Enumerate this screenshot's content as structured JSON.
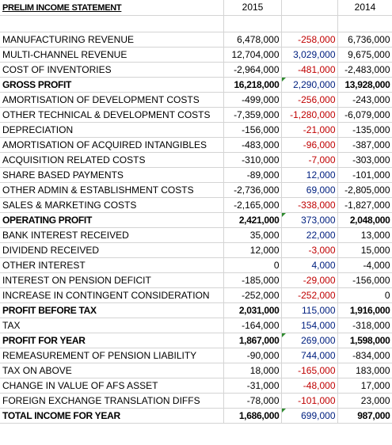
{
  "header": {
    "title": "PRELIM INCOME STATEMENT",
    "year_current": "2015",
    "year_variance": "",
    "year_prior": "2014"
  },
  "rows": [
    {
      "label": "MANUFACTURING REVENUE",
      "cur": "6,478,000",
      "var": "-258,000",
      "prior": "6,736,000"
    },
    {
      "label": "MULTI-CHANNEL REVENUE",
      "cur": "12,704,000",
      "var": "3,029,000",
      "prior": "9,675,000"
    },
    {
      "label": "COST OF INVENTORIES",
      "cur": "-2,964,000",
      "var": "-481,000",
      "prior": "-2,483,000"
    },
    {
      "label": "GROSS PROFIT",
      "cur": "16,218,000",
      "var": "2,290,000",
      "prior": "13,928,000"
    },
    {
      "label": "AMORTISATION OF DEVELOPMENT COSTS",
      "cur": "-499,000",
      "var": "-256,000",
      "prior": "-243,000"
    },
    {
      "label": "OTHER TECHNICAL & DEVELOPMENT COSTS",
      "cur": "-7,359,000",
      "var": "-1,280,000",
      "prior": "-6,079,000"
    },
    {
      "label": "DEPRECIATION",
      "cur": "-156,000",
      "var": "-21,000",
      "prior": "-135,000"
    },
    {
      "label": "AMORTISATION OF ACQUIRED INTANGIBLES",
      "cur": "-483,000",
      "var": "-96,000",
      "prior": "-387,000"
    },
    {
      "label": "ACQUISITION RELATED COSTS",
      "cur": "-310,000",
      "var": "-7,000",
      "prior": "-303,000"
    },
    {
      "label": "SHARE BASED PAYMENTS",
      "cur": "-89,000",
      "var": "12,000",
      "prior": "-101,000"
    },
    {
      "label": "OTHER ADMIN & ESTABLISHMENT COSTS",
      "cur": "-2,736,000",
      "var": "69,000",
      "prior": "-2,805,000"
    },
    {
      "label": "SALES & MARKETING COSTS",
      "cur": "-2,165,000",
      "var": "-338,000",
      "prior": "-1,827,000"
    },
    {
      "label": "OPERATING PROFIT",
      "cur": "2,421,000",
      "var": "373,000",
      "prior": "2,048,000"
    },
    {
      "label": "BANK INTEREST RECEIVED",
      "cur": "35,000",
      "var": "22,000",
      "prior": "13,000"
    },
    {
      "label": "DIVIDEND RECEIVED",
      "cur": "12,000",
      "var": "-3,000",
      "prior": "15,000"
    },
    {
      "label": "OTHER INTEREST",
      "cur": "0",
      "var": "4,000",
      "prior": "-4,000"
    },
    {
      "label": "INTEREST ON PENSION DEFICIT",
      "cur": "-185,000",
      "var": "-29,000",
      "prior": "-156,000"
    },
    {
      "label": "INCREASE IN CONTINGENT CONSIDERATION",
      "cur": "-252,000",
      "var": "-252,000",
      "prior": "0"
    },
    {
      "label": "PROFIT BEFORE TAX",
      "cur": "2,031,000",
      "var": "115,000",
      "prior": "1,916,000"
    },
    {
      "label": "TAX",
      "cur": "-164,000",
      "var": "154,000",
      "prior": "-318,000"
    },
    {
      "label": "PROFIT FOR YEAR",
      "cur": "1,867,000",
      "var": "269,000",
      "prior": "1,598,000"
    },
    {
      "label": "REMEASUREMENT OF PENSION LIABILITY",
      "cur": "-90,000",
      "var": "744,000",
      "prior": "-834,000"
    },
    {
      "label": "TAX ON ABOVE",
      "cur": "18,000",
      "var": "-165,000",
      "prior": "183,000"
    },
    {
      "label": "CHANGE IN VALUE OF AFS ASSET",
      "cur": "-31,000",
      "var": "-48,000",
      "prior": "17,000"
    },
    {
      "label": "FOREIGN EXCHANGE TRANSLATION DIFFS",
      "cur": "-78,000",
      "var": "-101,000",
      "prior": "23,000"
    },
    {
      "label": "TOTAL INCOME FOR YEAR",
      "cur": "1,686,000",
      "var": "699,000",
      "prior": "987,000"
    }
  ],
  "colors": {
    "negative_variance": "#c00000",
    "positive_variance": "#002080",
    "gridline": "#d4d4d4",
    "error_flag": "#2e8b2e"
  }
}
